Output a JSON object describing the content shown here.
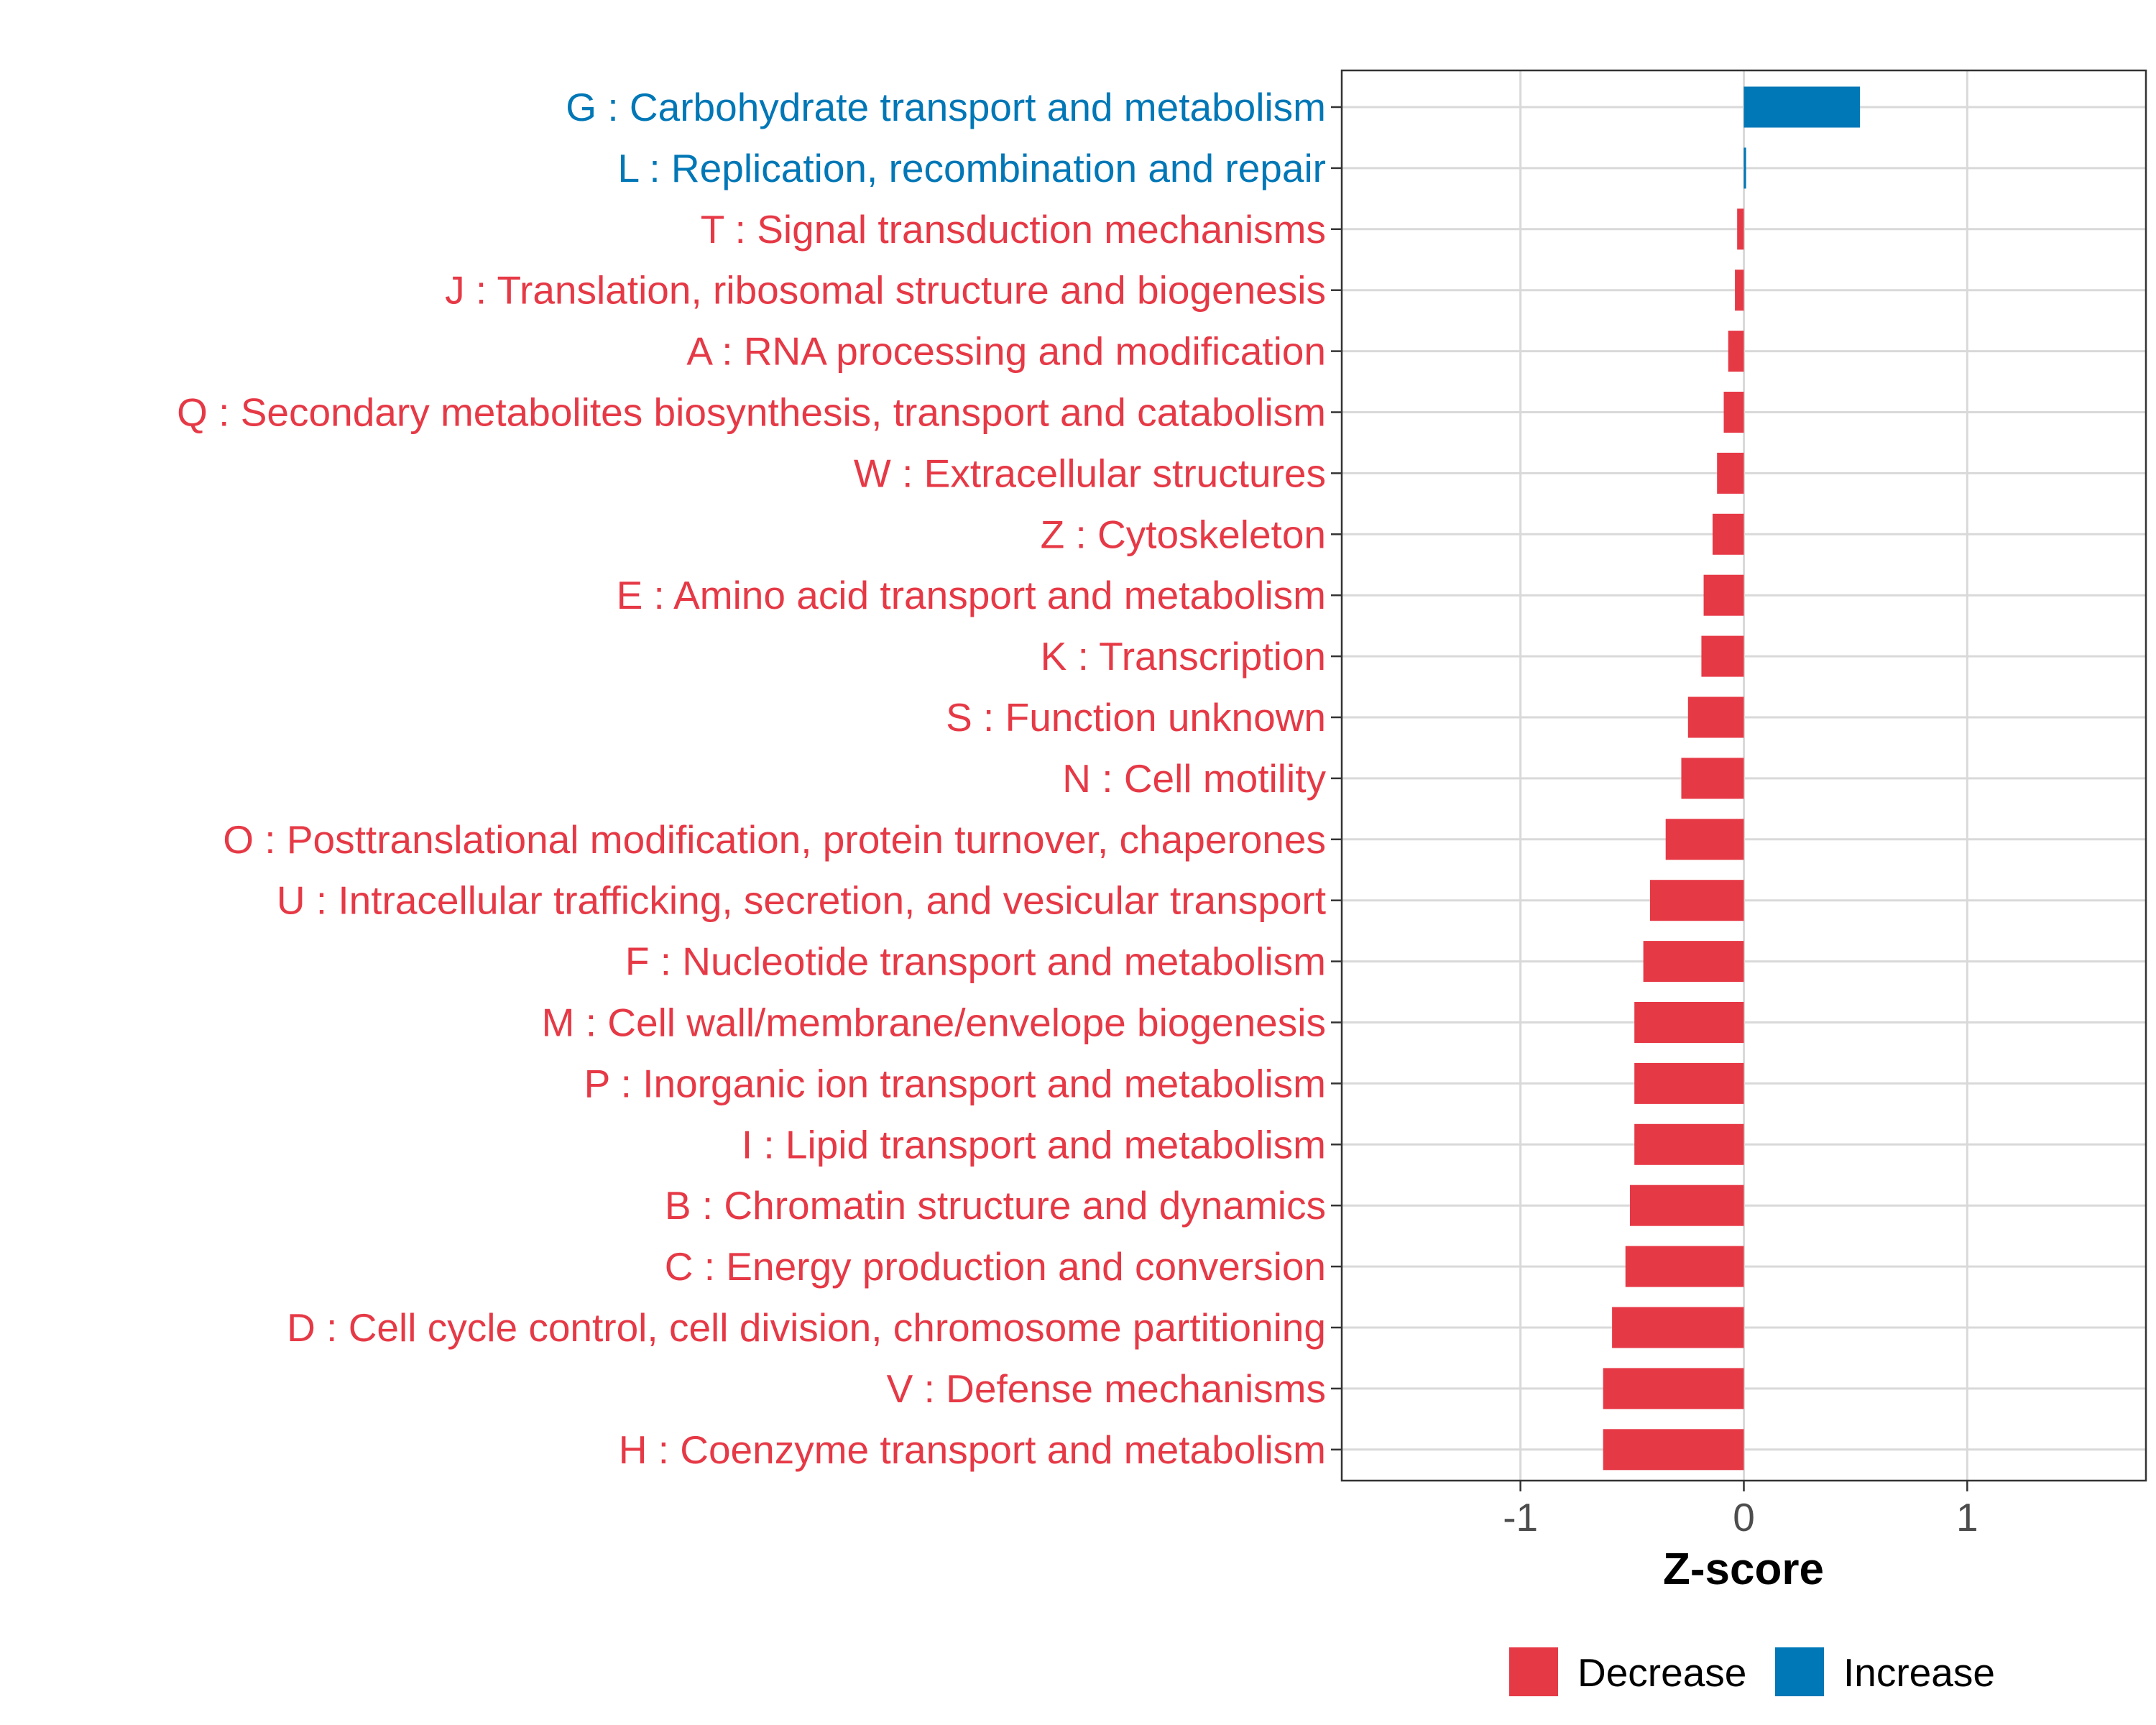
{
  "chart_data": {
    "type": "bar",
    "orientation": "horizontal",
    "title": "",
    "xlabel": "Z-score",
    "ylabel": "",
    "xlim": [
      -1.8,
      1.8
    ],
    "xticks": [
      -1,
      0,
      1
    ],
    "xtick_labels": [
      "-1",
      "0",
      "1"
    ],
    "grid": true,
    "legend": {
      "position": "bottom",
      "entries": [
        {
          "label": "Decrease",
          "color": "#E63946"
        },
        {
          "label": "Increase",
          "color": "#0077B6"
        }
      ]
    },
    "categories": [
      "G : Carbohydrate transport and metabolism",
      "L : Replication, recombination and repair",
      "T : Signal transduction mechanisms",
      "J : Translation, ribosomal structure and biogenesis",
      "A : RNA processing and modification",
      "Q : Secondary metabolites biosynthesis, transport and catabolism",
      "W : Extracellular structures",
      "Z : Cytoskeleton",
      "E : Amino acid transport and metabolism",
      "K : Transcription",
      "S : Function unknown",
      "N : Cell motility",
      "O : Posttranslational modification, protein turnover, chaperones",
      "U : Intracellular trafficking, secretion, and vesicular transport",
      "F : Nucleotide transport and metabolism",
      "M : Cell wall/membrane/envelope biogenesis",
      "P : Inorganic ion transport and metabolism",
      "I : Lipid transport and metabolism",
      "B : Chromatin structure and dynamics",
      "C : Energy production and conversion",
      "D : Cell cycle control, cell division, chromosome partitioning",
      "V : Defense mechanisms",
      "H : Coenzyme transport and metabolism"
    ],
    "values": [
      0.52,
      0.01,
      -0.03,
      -0.04,
      -0.07,
      -0.09,
      -0.12,
      -0.14,
      -0.18,
      -0.19,
      -0.25,
      -0.28,
      -0.35,
      -0.42,
      -0.45,
      -0.49,
      -0.49,
      -0.49,
      -0.51,
      -0.53,
      -0.59,
      -0.63,
      -0.63
    ],
    "direction": [
      "Increase",
      "Increase",
      "Decrease",
      "Decrease",
      "Decrease",
      "Decrease",
      "Decrease",
      "Decrease",
      "Decrease",
      "Decrease",
      "Decrease",
      "Decrease",
      "Decrease",
      "Decrease",
      "Decrease",
      "Decrease",
      "Decrease",
      "Decrease",
      "Decrease",
      "Decrease",
      "Decrease",
      "Decrease",
      "Decrease"
    ]
  }
}
